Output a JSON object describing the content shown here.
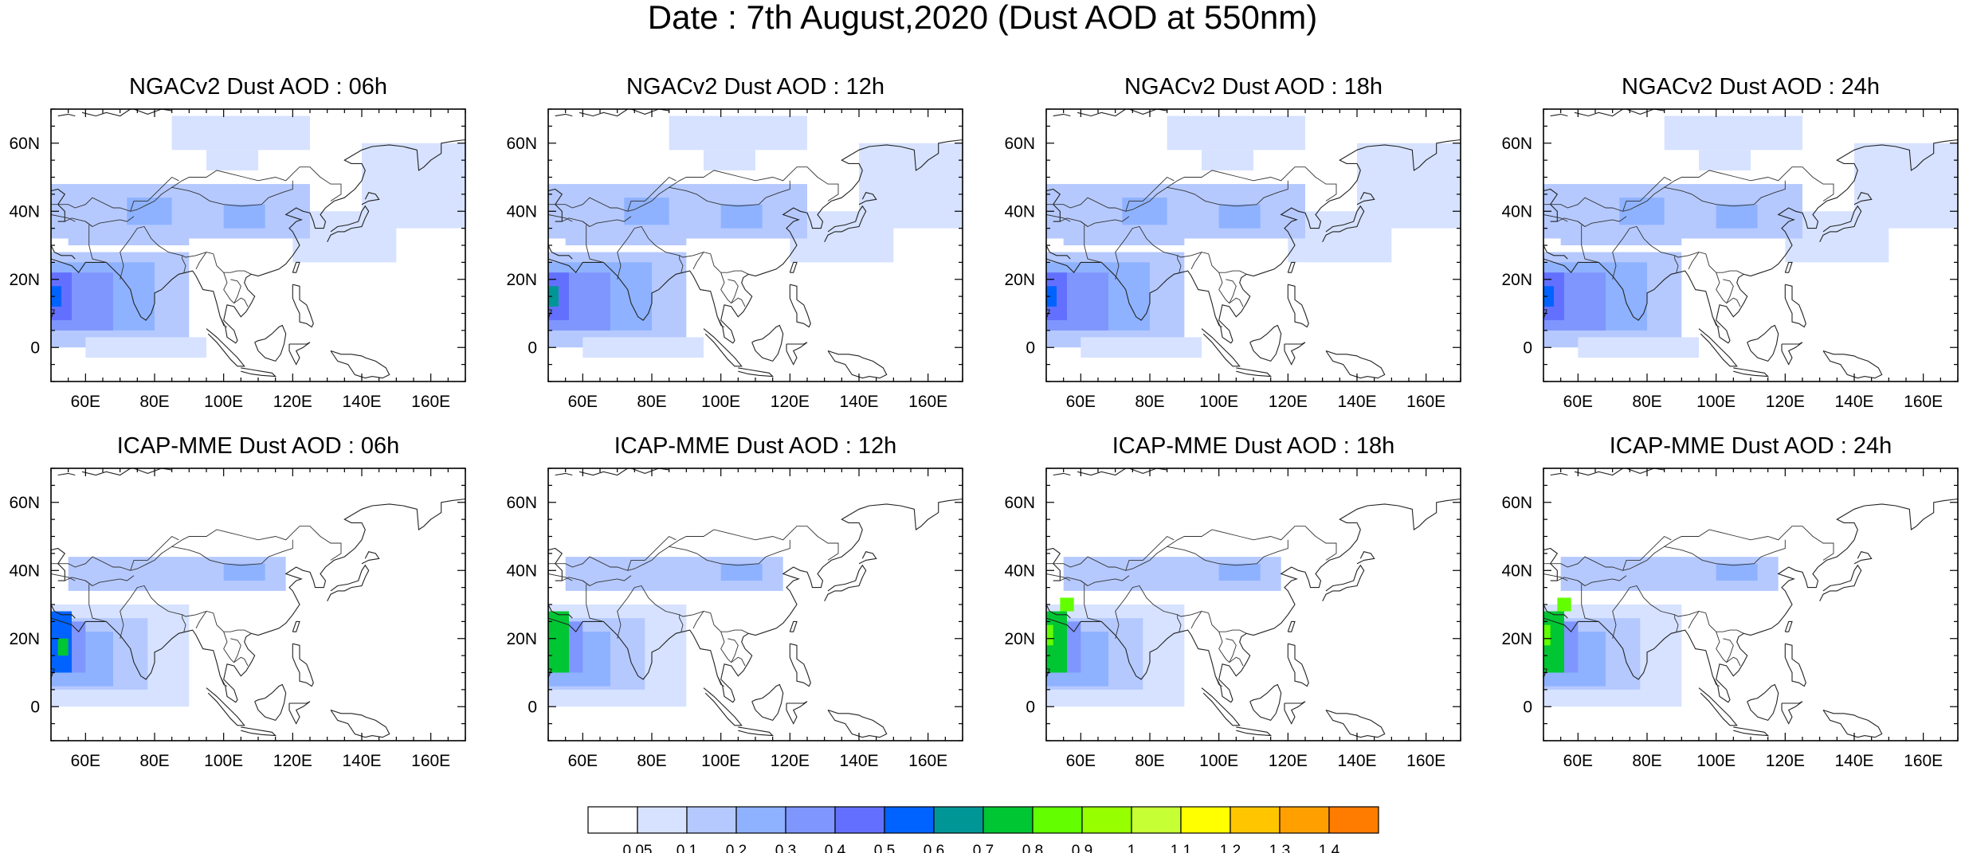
{
  "title": "Date : 7th August,2020 (Dust AOD at 550nm)",
  "chart_data": [
    {
      "type": "heatmap",
      "title": "NGACv2 Dust AOD : 06h",
      "xlim": [
        50,
        170
      ],
      "ylim": [
        -10,
        70
      ],
      "xticks": [
        "60E",
        "80E",
        "100E",
        "120E",
        "140E",
        "160E"
      ],
      "yticks": [
        "60N",
        "40N",
        "20N",
        "0"
      ],
      "dust_regions": [
        {
          "lon": [
            50,
            90
          ],
          "lat": [
            0,
            28
          ],
          "aod": 0.3
        },
        {
          "lon": [
            55,
            125
          ],
          "lat": [
            32,
            47
          ],
          "aod": 0.25
        },
        {
          "lon": [
            90,
            160
          ],
          "lat": [
            52,
            68
          ],
          "aod": 0.1
        },
        {
          "lon": [
            140,
            170
          ],
          "lat": [
            25,
            60
          ],
          "aod": 0.1
        },
        {
          "lon": [
            50,
            55
          ],
          "lat": [
            10,
            25
          ],
          "aod": 0.6
        }
      ]
    },
    {
      "type": "heatmap",
      "title": "NGACv2 Dust AOD : 12h",
      "xlim": [
        50,
        170
      ],
      "ylim": [
        -10,
        70
      ],
      "xticks": [
        "60E",
        "80E",
        "100E",
        "120E",
        "140E",
        "160E"
      ],
      "yticks": [
        "60N",
        "40N",
        "20N",
        "0"
      ],
      "dust_regions": [
        {
          "lon": [
            50,
            90
          ],
          "lat": [
            0,
            28
          ],
          "aod": 0.3
        },
        {
          "lon": [
            55,
            125
          ],
          "lat": [
            32,
            47
          ],
          "aod": 0.25
        },
        {
          "lon": [
            90,
            160
          ],
          "lat": [
            52,
            68
          ],
          "aod": 0.1
        },
        {
          "lon": [
            140,
            170
          ],
          "lat": [
            25,
            60
          ],
          "aod": 0.1
        },
        {
          "lon": [
            50,
            55
          ],
          "lat": [
            10,
            25
          ],
          "aod": 0.7
        }
      ]
    },
    {
      "type": "heatmap",
      "title": "NGACv2 Dust AOD : 18h",
      "xlim": [
        50,
        170
      ],
      "ylim": [
        -10,
        70
      ],
      "xticks": [
        "60E",
        "80E",
        "100E",
        "120E",
        "140E",
        "160E"
      ],
      "yticks": [
        "60N",
        "40N",
        "20N",
        "0"
      ],
      "dust_regions": [
        {
          "lon": [
            50,
            90
          ],
          "lat": [
            0,
            28
          ],
          "aod": 0.3
        },
        {
          "lon": [
            55,
            125
          ],
          "lat": [
            32,
            47
          ],
          "aod": 0.25
        },
        {
          "lon": [
            90,
            160
          ],
          "lat": [
            52,
            68
          ],
          "aod": 0.1
        },
        {
          "lon": [
            140,
            170
          ],
          "lat": [
            25,
            60
          ],
          "aod": 0.1
        },
        {
          "lon": [
            50,
            55
          ],
          "lat": [
            12,
            25
          ],
          "aod": 0.6
        }
      ]
    },
    {
      "type": "heatmap",
      "title": "NGACv2 Dust AOD : 24h",
      "xlim": [
        50,
        170
      ],
      "ylim": [
        -10,
        70
      ],
      "xticks": [
        "60E",
        "80E",
        "100E",
        "120E",
        "140E",
        "160E"
      ],
      "yticks": [
        "60N",
        "40N",
        "20N",
        "0"
      ],
      "dust_regions": [
        {
          "lon": [
            50,
            90
          ],
          "lat": [
            0,
            28
          ],
          "aod": 0.3
        },
        {
          "lon": [
            55,
            125
          ],
          "lat": [
            32,
            47
          ],
          "aod": 0.25
        },
        {
          "lon": [
            90,
            160
          ],
          "lat": [
            52,
            68
          ],
          "aod": 0.1
        },
        {
          "lon": [
            140,
            170
          ],
          "lat": [
            25,
            60
          ],
          "aod": 0.1
        },
        {
          "lon": [
            50,
            55
          ],
          "lat": [
            12,
            25
          ],
          "aod": 0.6
        }
      ]
    },
    {
      "type": "heatmap",
      "title": "ICAP-MME Dust AOD : 06h",
      "xlim": [
        50,
        170
      ],
      "ylim": [
        -10,
        70
      ],
      "xticks": [
        "60E",
        "80E",
        "100E",
        "120E",
        "140E",
        "160E"
      ],
      "yticks": [
        "60N",
        "40N",
        "20N",
        "0"
      ],
      "dust_regions": [
        {
          "lon": [
            50,
            85
          ],
          "lat": [
            5,
            30
          ],
          "aod": 0.3
        },
        {
          "lon": [
            55,
            115
          ],
          "lat": [
            35,
            45
          ],
          "aod": 0.2
        },
        {
          "lon": [
            50,
            56
          ],
          "lat": [
            10,
            28
          ],
          "aod": 0.7
        }
      ]
    },
    {
      "type": "heatmap",
      "title": "ICAP-MME Dust AOD : 12h",
      "xlim": [
        50,
        170
      ],
      "ylim": [
        -10,
        70
      ],
      "xticks": [
        "60E",
        "80E",
        "100E",
        "120E",
        "140E",
        "160E"
      ],
      "yticks": [
        "60N",
        "40N",
        "20N",
        "0"
      ],
      "dust_regions": [
        {
          "lon": [
            50,
            85
          ],
          "lat": [
            5,
            30
          ],
          "aod": 0.35
        },
        {
          "lon": [
            55,
            115
          ],
          "lat": [
            35,
            45
          ],
          "aod": 0.2
        },
        {
          "lon": [
            50,
            56
          ],
          "lat": [
            10,
            28
          ],
          "aod": 0.8
        }
      ]
    },
    {
      "type": "heatmap",
      "title": "ICAP-MME Dust AOD : 18h",
      "xlim": [
        50,
        170
      ],
      "ylim": [
        -10,
        70
      ],
      "xticks": [
        "60E",
        "80E",
        "100E",
        "120E",
        "140E",
        "160E"
      ],
      "yticks": [
        "60N",
        "40N",
        "20N",
        "0"
      ],
      "dust_regions": [
        {
          "lon": [
            50,
            85
          ],
          "lat": [
            5,
            32
          ],
          "aod": 0.35
        },
        {
          "lon": [
            55,
            115
          ],
          "lat": [
            35,
            45
          ],
          "aod": 0.2
        },
        {
          "lon": [
            50,
            56
          ],
          "lat": [
            12,
            30
          ],
          "aod": 0.8
        }
      ]
    },
    {
      "type": "heatmap",
      "title": "ICAP-MME Dust AOD : 24h",
      "xlim": [
        50,
        170
      ],
      "ylim": [
        -10,
        70
      ],
      "xticks": [
        "60E",
        "80E",
        "100E",
        "120E",
        "140E",
        "160E"
      ],
      "yticks": [
        "60N",
        "40N",
        "20N",
        "0"
      ],
      "dust_regions": [
        {
          "lon": [
            50,
            85
          ],
          "lat": [
            5,
            32
          ],
          "aod": 0.35
        },
        {
          "lon": [
            55,
            115
          ],
          "lat": [
            35,
            45
          ],
          "aod": 0.2
        },
        {
          "lon": [
            50,
            56
          ],
          "lat": [
            15,
            32
          ],
          "aod": 0.8
        }
      ]
    }
  ],
  "colorbar": {
    "labels": [
      "0.05",
      "0.1",
      "0.2",
      "0.3",
      "0.4",
      "0.5",
      "0.6",
      "0.7",
      "0.8",
      "0.9",
      "1",
      "1.1",
      "1.2",
      "1.3",
      "1.4"
    ],
    "colors": [
      "#ffffff",
      "#d6e2ff",
      "#b5c9ff",
      "#8eb2ff",
      "#7f96ff",
      "#6370ff",
      "#0063ff",
      "#009696",
      "#00c633",
      "#63ff00",
      "#96ff00",
      "#c6ff33",
      "#ffff00",
      "#ffc600",
      "#ffa000",
      "#ff7c00",
      "#ff1900"
    ]
  }
}
